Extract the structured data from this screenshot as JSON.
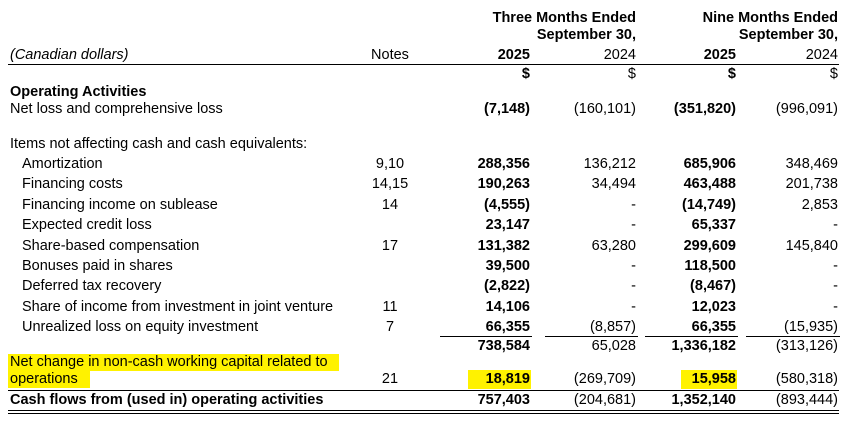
{
  "header": {
    "units_label": "(Canadian dollars)",
    "notes_label": "Notes",
    "three_months_line1": "Three Months Ended",
    "three_months_line2": "September 30,",
    "nine_months_line1": "Nine Months Ended",
    "nine_months_line2": "September 30,",
    "col_2025_three": "2025",
    "col_2024_three": "2024",
    "col_2025_nine": "2025",
    "col_2024_nine": "2024",
    "currency_symbol": "$"
  },
  "section_title": "Operating Activities",
  "net_loss": {
    "label": "Net loss and comprehensive loss",
    "v1": "(7,148)",
    "v2": "(160,101)",
    "v3": "(351,820)",
    "v4": "(996,091)"
  },
  "items_heading": "Items not affecting cash and cash equivalents:",
  "items": [
    {
      "label": "Amortization",
      "note": "9,10",
      "v1": "288,356",
      "v2": "136,212",
      "v3": "685,906",
      "v4": "348,469"
    },
    {
      "label": "Financing costs",
      "note": "14,15",
      "v1": "190,263",
      "v2": "34,494",
      "v3": "463,488",
      "v4": "201,738"
    },
    {
      "label": "Financing income on sublease",
      "note": "14",
      "v1": "(4,555)",
      "v2": "-",
      "v3": "(14,749)",
      "v4": "2,853"
    },
    {
      "label": "Expected credit loss",
      "note": "",
      "v1": "23,147",
      "v2": "-",
      "v3": "65,337",
      "v4": "-"
    },
    {
      "label": "Share-based compensation",
      "note": "17",
      "v1": "131,382",
      "v2": "63,280",
      "v3": "299,609",
      "v4": "145,840"
    },
    {
      "label": "Bonuses paid in shares",
      "note": "",
      "v1": "39,500",
      "v2": "-",
      "v3": "118,500",
      "v4": "-"
    },
    {
      "label": "Deferred tax recovery",
      "note": "",
      "v1": "(2,822)",
      "v2": "-",
      "v3": "(8,467)",
      "v4": "-"
    },
    {
      "label": "Share of income from investment in joint venture",
      "note": "11",
      "v1": "14,106",
      "v2": "-",
      "v3": "12,023",
      "v4": "-"
    },
    {
      "label": "Unrealized loss on equity investment",
      "note": "7",
      "v1": "66,355",
      "v2": "(8,857)",
      "v3": "66,355",
      "v4": "(15,935)"
    }
  ],
  "subtotal": {
    "v1": "738,584",
    "v2": "65,028",
    "v3": "1,336,182",
    "v4": "(313,126)"
  },
  "working_capital": {
    "label_line1": "Net change in non-cash working capital related to",
    "label_line2": "operations",
    "note": "21",
    "v1": "18,819",
    "v2": "(269,709)",
    "v3": "15,958",
    "v4": "(580,318)"
  },
  "total": {
    "label": "Cash flows from (used in) operating activities",
    "v1": "757,403",
    "v2": "(204,681)",
    "v3": "1,352,140",
    "v4": "(893,444)"
  }
}
